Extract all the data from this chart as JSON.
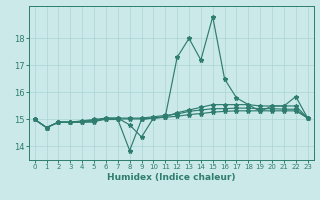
{
  "xlabel": "Humidex (Indice chaleur)",
  "ylabel": "",
  "background_color": "#cce9e9",
  "grid_color": "#aad4d4",
  "line_color": "#2e7d6e",
  "xlim": [
    -0.5,
    23.5
  ],
  "ylim": [
    13.5,
    19.2
  ],
  "xticks": [
    0,
    1,
    2,
    3,
    4,
    5,
    6,
    7,
    8,
    9,
    10,
    11,
    12,
    13,
    14,
    15,
    16,
    17,
    18,
    19,
    20,
    21,
    22,
    23
  ],
  "yticks": [
    14,
    15,
    16,
    17,
    18
  ],
  "series": [
    [
      15.0,
      14.7,
      14.9,
      14.9,
      14.9,
      14.9,
      15.05,
      15.05,
      14.8,
      14.35,
      15.05,
      15.1,
      17.3,
      18.0,
      17.2,
      18.8,
      16.5,
      15.8,
      15.55,
      15.3,
      15.5,
      15.5,
      15.85,
      15.05
    ],
    [
      15.0,
      14.7,
      14.9,
      14.9,
      14.9,
      14.95,
      15.0,
      15.0,
      13.85,
      15.0,
      15.05,
      15.1,
      15.25,
      15.35,
      15.45,
      15.55,
      15.55,
      15.55,
      15.55,
      15.5,
      15.5,
      15.5,
      15.5,
      15.05
    ],
    [
      15.0,
      14.7,
      14.9,
      14.9,
      14.95,
      15.0,
      15.05,
      15.05,
      15.05,
      15.05,
      15.1,
      15.15,
      15.2,
      15.3,
      15.35,
      15.4,
      15.4,
      15.42,
      15.42,
      15.4,
      15.4,
      15.38,
      15.38,
      15.05
    ],
    [
      15.0,
      14.7,
      14.9,
      14.9,
      14.93,
      14.97,
      15.02,
      15.02,
      15.02,
      15.02,
      15.05,
      15.08,
      15.12,
      15.18,
      15.22,
      15.27,
      15.3,
      15.32,
      15.32,
      15.32,
      15.32,
      15.32,
      15.32,
      15.05
    ]
  ]
}
